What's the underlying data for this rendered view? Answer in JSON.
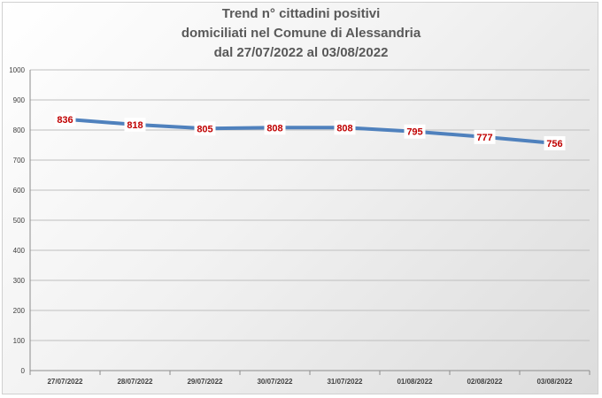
{
  "chart_data": {
    "type": "line",
    "title_lines": [
      "Trend n° cittadini positivi",
      "domiciliati nel Comune di Alessandria",
      "dal 27/07/2022 al 03/08/2022"
    ],
    "categories": [
      "27/07/2022",
      "28/07/2022",
      "29/07/2022",
      "30/07/2022",
      "31/07/2022",
      "01/08/2022",
      "02/08/2022",
      "03/08/2022"
    ],
    "values": [
      836,
      818,
      805,
      808,
      808,
      795,
      777,
      756
    ],
    "data_labels": [
      "836",
      "818",
      "805",
      "808",
      "808",
      "795",
      "777",
      "756"
    ],
    "y_ticks": [
      0,
      100,
      200,
      300,
      400,
      500,
      600,
      700,
      800,
      900,
      1000
    ],
    "y_tick_labels": [
      "0",
      "100",
      "200",
      "300",
      "400",
      "500",
      "600",
      "700",
      "800",
      "900",
      "1000"
    ],
    "ylim": [
      0,
      1000
    ],
    "grid": true,
    "legend": "none",
    "line_color": "#4f81bd",
    "label_color": "#c00000"
  }
}
